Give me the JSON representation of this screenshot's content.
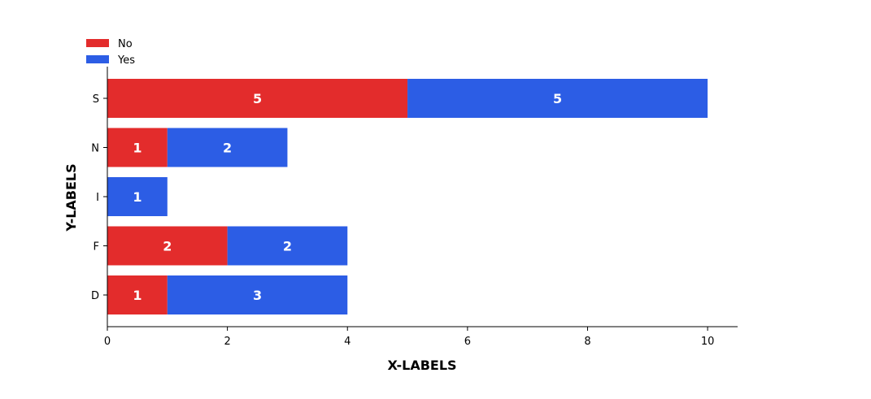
{
  "chart_data": {
    "type": "bar",
    "orientation": "horizontal",
    "stacked": true,
    "categories": [
      "D",
      "F",
      "I",
      "N",
      "S"
    ],
    "series": [
      {
        "name": "No",
        "color": "#e32c2c",
        "values": [
          1,
          2,
          0,
          1,
          5
        ]
      },
      {
        "name": "Yes",
        "color": "#2c5de5",
        "values": [
          3,
          2,
          1,
          2,
          5
        ]
      }
    ],
    "xlabel": "X-LABELS",
    "ylabel": "Y-LABELS",
    "xlim": [
      0,
      10.5
    ],
    "xticks": [
      0,
      2,
      4,
      6,
      8,
      10
    ],
    "grid": false,
    "legend_position": "top-left",
    "show_value_labels": true
  }
}
